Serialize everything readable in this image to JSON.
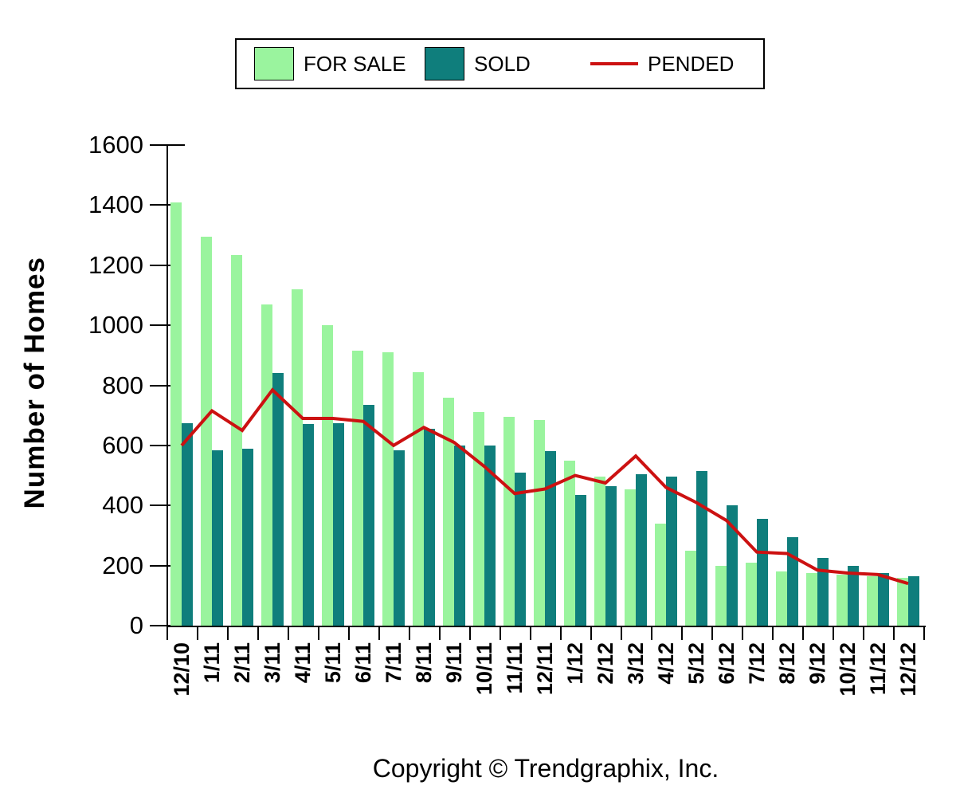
{
  "page": {
    "background": "#FFFFFF"
  },
  "legend": {
    "items": [
      {
        "label": "FOR SALE",
        "swatch": "box",
        "color": "#9AF49E"
      },
      {
        "label": "SOLD",
        "swatch": "box",
        "color": "#0F7E7C"
      },
      {
        "label": "PENDED",
        "swatch": "line",
        "color": "#CC1111"
      }
    ]
  },
  "footer": {
    "copyright": "Copyright © Trendgraphix, Inc."
  },
  "chart_data": {
    "type": "bar",
    "title": "",
    "categories": [
      "12/10",
      "1/11",
      "2/11",
      "3/11",
      "4/11",
      "5/11",
      "6/11",
      "7/11",
      "8/11",
      "9/11",
      "10/11",
      "11/11",
      "12/11",
      "1/12",
      "2/12",
      "3/12",
      "4/12",
      "5/12",
      "6/12",
      "7/12",
      "8/12",
      "9/12",
      "10/12",
      "11/12",
      "12/12"
    ],
    "series": [
      {
        "name": "FOR SALE",
        "type": "bar",
        "color": "#9AF49E",
        "values": [
          1410,
          1295,
          1235,
          1070,
          1120,
          1000,
          915,
          910,
          845,
          760,
          710,
          695,
          685,
          550,
          495,
          455,
          340,
          250,
          200,
          210,
          180,
          175,
          170,
          165,
          160
        ]
      },
      {
        "name": "SOLD",
        "type": "bar",
        "color": "#0F7E7C",
        "values": [
          675,
          585,
          590,
          840,
          670,
          675,
          735,
          585,
          655,
          600,
          600,
          510,
          580,
          435,
          465,
          505,
          495,
          515,
          400,
          355,
          295,
          225,
          200,
          175,
          165
        ]
      },
      {
        "name": "PENDED",
        "type": "line",
        "color": "#CC1111",
        "values": [
          600,
          715,
          650,
          785,
          690,
          690,
          680,
          600,
          660,
          610,
          530,
          440,
          455,
          500,
          475,
          565,
          460,
          410,
          350,
          245,
          240,
          185,
          175,
          170,
          140
        ]
      }
    ],
    "xlabel": "",
    "ylabel": "Number of Homes",
    "ylim": [
      0,
      1600
    ],
    "y_ticks": [
      0,
      200,
      400,
      600,
      800,
      1000,
      1200,
      1400,
      1600
    ],
    "grid": false,
    "legend_position": "top-center"
  }
}
